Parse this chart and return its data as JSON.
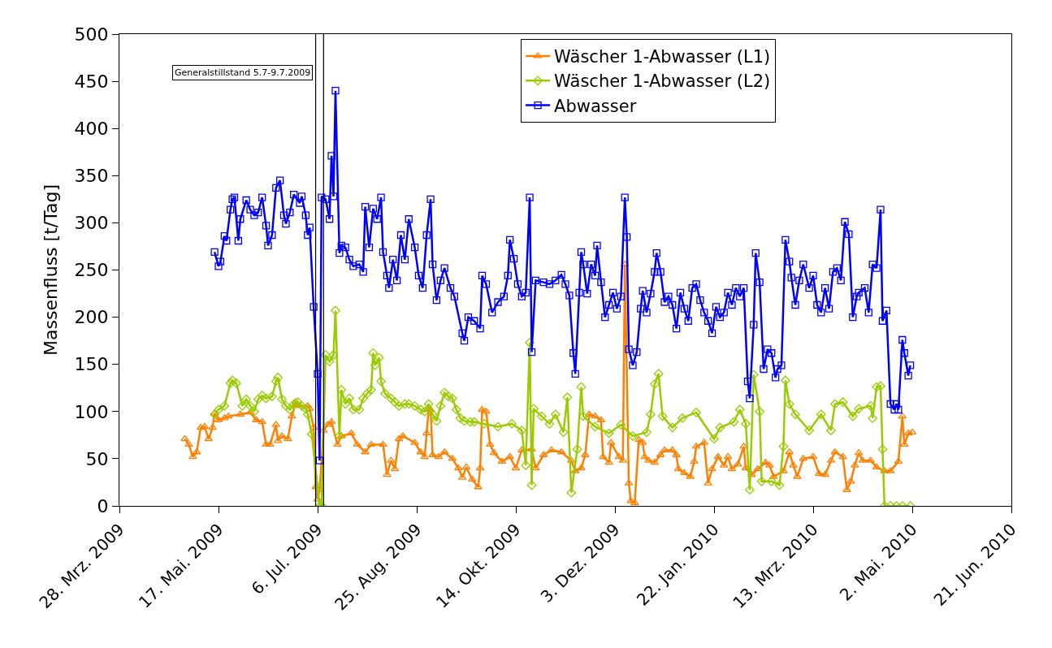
{
  "chart_data": {
    "type": "line",
    "ylabel": "Massenfluss [t/Tag]",
    "xlim": [
      "2009-03-28",
      "2010-06-21"
    ],
    "xticks": [
      {
        "value": "2009-03-28",
        "label": "28. Mrz. 2009"
      },
      {
        "value": "2009-05-17",
        "label": "17. Mai. 2009"
      },
      {
        "value": "2009-07-06",
        "label": "6. Jul. 2009"
      },
      {
        "value": "2009-08-25",
        "label": "25. Aug. 2009"
      },
      {
        "value": "2009-10-14",
        "label": "14. Okt. 2009"
      },
      {
        "value": "2009-12-03",
        "label": "3. Dez. 2009"
      },
      {
        "value": "2010-01-22",
        "label": "22. Jan. 2010"
      },
      {
        "value": "2010-03-13",
        "label": "13. Mrz. 2010"
      },
      {
        "value": "2010-05-02",
        "label": "2. Mai. 2010"
      },
      {
        "value": "2010-06-21",
        "label": "21. Jun. 2010"
      }
    ],
    "ylim": [
      0,
      500
    ],
    "yticks": [
      0,
      50,
      100,
      150,
      200,
      250,
      300,
      350,
      400,
      450,
      500
    ],
    "grid": false,
    "legend": "top",
    "line_style": "solid",
    "ref_lines": [
      {
        "axis": "x",
        "value": "2009-07-05",
        "label": "Generalstillstand 5.7-9.7.2009",
        "color": "#000000"
      },
      {
        "axis": "x",
        "value": "2009-07-09",
        "color": "#000000"
      }
    ],
    "series": [
      {
        "name": "Wäscher 1-Abwasser (L1)",
        "color": "#ff8000",
        "marker": "triangle",
        "x": [
          "2009-04-30",
          "2009-05-02",
          "2009-05-04",
          "2009-05-06",
          "2009-05-08",
          "2009-05-10",
          "2009-05-12",
          "2009-05-14",
          "2009-05-15",
          "2009-05-17",
          "2009-05-20",
          "2009-05-22",
          "2009-05-28",
          "2009-06-02",
          "2009-06-05",
          "2009-06-08",
          "2009-06-10",
          "2009-06-12",
          "2009-06-15",
          "2009-06-16",
          "2009-06-18",
          "2009-06-21",
          "2009-06-23",
          "2009-06-25",
          "2009-06-27",
          "2009-07-01",
          "2009-07-02",
          "2009-07-04",
          "2009-07-05",
          "2009-07-06",
          "2009-07-07",
          "2009-07-09",
          "2009-07-11",
          "2009-07-13",
          "2009-07-16",
          "2009-07-18",
          "2009-07-23",
          "2009-07-26",
          "2009-07-30",
          "2009-08-02",
          "2009-08-08",
          "2009-08-10",
          "2009-08-12",
          "2009-08-14",
          "2009-08-16",
          "2009-08-18",
          "2009-08-24",
          "2009-08-27",
          "2009-08-29",
          "2009-08-30",
          "2009-08-31",
          "2009-09-01",
          "2009-09-02",
          "2009-09-05",
          "2009-09-08",
          "2009-09-12",
          "2009-09-15",
          "2009-09-17",
          "2009-09-19",
          "2009-09-22",
          "2009-09-25",
          "2009-09-26",
          "2009-09-27",
          "2009-09-29",
          "2009-10-01",
          "2009-10-03",
          "2009-10-07",
          "2009-10-11",
          "2009-10-14",
          "2009-10-17",
          "2009-10-22",
          "2009-10-24",
          "2009-10-28",
          "2009-11-01",
          "2009-11-06",
          "2009-11-11",
          "2009-11-13",
          "2009-11-16",
          "2009-11-18",
          "2009-11-20",
          "2009-11-23",
          "2009-11-26",
          "2009-11-27",
          "2009-11-30",
          "2009-12-01",
          "2009-12-05",
          "2009-12-07",
          "2009-12-08",
          "2009-12-10",
          "2009-12-11",
          "2009-12-13",
          "2009-12-15",
          "2009-12-17",
          "2009-12-18",
          "2009-12-20",
          "2009-12-23",
          "2009-12-26",
          "2009-12-28",
          "2010-01-01",
          "2010-01-03",
          "2010-01-04",
          "2010-01-07",
          "2010-01-10",
          "2010-01-12",
          "2010-01-13",
          "2010-01-17",
          "2010-01-19",
          "2010-01-21",
          "2010-01-24",
          "2010-01-27",
          "2010-01-29",
          "2010-01-31",
          "2010-02-03",
          "2010-02-06",
          "2010-02-07",
          "2010-02-10",
          "2010-02-13",
          "2010-02-17",
          "2010-02-19",
          "2010-02-21",
          "2010-02-26",
          "2010-03-01",
          "2010-03-03",
          "2010-03-05",
          "2010-03-08",
          "2010-03-13",
          "2010-03-16",
          "2010-03-19",
          "2010-03-22",
          "2010-03-24",
          "2010-03-28",
          "2010-03-30",
          "2010-04-01",
          "2010-04-03",
          "2010-04-05",
          "2010-04-07",
          "2010-04-11",
          "2010-04-14",
          "2010-04-18",
          "2010-04-21",
          "2010-04-25",
          "2010-04-27",
          "2010-04-28",
          "2010-04-30",
          "2010-05-02"
        ],
        "values": [
          71,
          65,
          52,
          57,
          83,
          84,
          71,
          83,
          98,
          91,
          93,
          95,
          97,
          99,
          91,
          89,
          65,
          65,
          86,
          69,
          74,
          71,
          95,
          110,
          106,
          106,
          103,
          83,
          20,
          7,
          17,
          80,
          86,
          89,
          65,
          74,
          77,
          65,
          57,
          65,
          65,
          33,
          48,
          39,
          71,
          74,
          67,
          57,
          52,
          77,
          102,
          102,
          54,
          52,
          57,
          50,
          40,
          30,
          41,
          28,
          20,
          40,
          102,
          100,
          65,
          56,
          47,
          52,
          40,
          59,
          60,
          40,
          54,
          59,
          57,
          48,
          37,
          40,
          54,
          97,
          95,
          91,
          52,
          46,
          67,
          52,
          48,
          256,
          24,
          5,
          3,
          70,
          67,
          52,
          48,
          46,
          54,
          59,
          59,
          54,
          39,
          35,
          31,
          47,
          63,
          67,
          24,
          39,
          52,
          43,
          52,
          39,
          44,
          63,
          40,
          33,
          39,
          46,
          43,
          31,
          37,
          57,
          43,
          31,
          50,
          52,
          34,
          33,
          48,
          57,
          52,
          17,
          26,
          43,
          56,
          48,
          48,
          41,
          37,
          37,
          47,
          95,
          65,
          77,
          78
        ]
      },
      {
        "name": "Wäscher 1-Abwasser (L2)",
        "color": "#99cc00",
        "marker": "diamond",
        "x": [
          "2009-05-15",
          "2009-05-17",
          "2009-05-20",
          "2009-05-23",
          "2009-05-24",
          "2009-05-26",
          "2009-05-29",
          "2009-05-31",
          "2009-06-02",
          "2009-06-04",
          "2009-06-06",
          "2009-06-08",
          "2009-06-10",
          "2009-06-13",
          "2009-06-15",
          "2009-06-16",
          "2009-06-18",
          "2009-06-20",
          "2009-06-22",
          "2009-06-24",
          "2009-06-26",
          "2009-06-28",
          "2009-06-30",
          "2009-07-01",
          "2009-07-03",
          "2009-07-06",
          "2009-07-07",
          "2009-07-08",
          "2009-07-10",
          "2009-07-12",
          "2009-07-14",
          "2009-07-15",
          "2009-07-17",
          "2009-07-18",
          "2009-07-20",
          "2009-07-22",
          "2009-07-24",
          "2009-07-27",
          "2009-07-29",
          "2009-07-31",
          "2009-08-02",
          "2009-08-03",
          "2009-08-04",
          "2009-08-06",
          "2009-08-07",
          "2009-08-09",
          "2009-08-12",
          "2009-08-14",
          "2009-08-16",
          "2009-08-19",
          "2009-08-21",
          "2009-08-24",
          "2009-08-27",
          "2009-08-29",
          "2009-08-31",
          "2009-09-02",
          "2009-09-04",
          "2009-09-06",
          "2009-09-08",
          "2009-09-10",
          "2009-09-12",
          "2009-09-14",
          "2009-09-16",
          "2009-09-18",
          "2009-09-21",
          "2009-09-23",
          "2009-09-28",
          "2009-10-05",
          "2009-10-12",
          "2009-10-17",
          "2009-10-19",
          "2009-10-21",
          "2009-10-22",
          "2009-10-23",
          "2009-10-27",
          "2009-10-31",
          "2009-11-03",
          "2009-11-07",
          "2009-11-09",
          "2009-11-11",
          "2009-11-14",
          "2009-11-16",
          "2009-11-17",
          "2009-11-23",
          "2009-11-30",
          "2009-12-06",
          "2009-12-12",
          "2009-12-19",
          "2009-12-21",
          "2009-12-23",
          "2009-12-25",
          "2009-12-27",
          "2010-01-01",
          "2010-01-06",
          "2010-01-13",
          "2010-01-22",
          "2010-01-25",
          "2010-02-01",
          "2010-02-04",
          "2010-02-07",
          "2010-02-09",
          "2010-02-11",
          "2010-02-14",
          "2010-02-15",
          "2010-02-20",
          "2010-02-24",
          "2010-02-26",
          "2010-02-27",
          "2010-03-01",
          "2010-03-04",
          "2010-03-11",
          "2010-03-17",
          "2010-03-22",
          "2010-03-24",
          "2010-03-28",
          "2010-04-02",
          "2010-04-05",
          "2010-04-11",
          "2010-04-12",
          "2010-04-14",
          "2010-04-16",
          "2010-04-17",
          "2010-04-18",
          "2010-04-21",
          "2010-04-24",
          "2010-04-27",
          "2010-05-01"
        ],
        "values": [
          97,
          102,
          106,
          130,
          133,
          130,
          106,
          113,
          106,
          100,
          113,
          117,
          114,
          116,
          132,
          136,
          113,
          106,
          102,
          108,
          110,
          106,
          103,
          97,
          76,
          20,
          0,
          0,
          160,
          153,
          160,
          207,
          74,
          123,
          108,
          114,
          102,
          102,
          114,
          119,
          123,
          162,
          149,
          157,
          132,
          119,
          114,
          110,
          106,
          108,
          108,
          106,
          102,
          100,
          108,
          97,
          90,
          106,
          120,
          116,
          114,
          102,
          93,
          90,
          89,
          89,
          87,
          84,
          87,
          80,
          43,
          173,
          22,
          103,
          95,
          87,
          97,
          78,
          115,
          14,
          60,
          126,
          95,
          84,
          77,
          86,
          74,
          78,
          97,
          129,
          140,
          95,
          83,
          93,
          99,
          71,
          83,
          89,
          102,
          87,
          17,
          139,
          100,
          26,
          26,
          22,
          63,
          133,
          108,
          97,
          80,
          97,
          80,
          108,
          110,
          95,
          103,
          106,
          93,
          126,
          127,
          60,
          0,
          0,
          0,
          0,
          0
        ]
      },
      {
        "name": "Abwasser",
        "color": "#0000ff",
        "marker": "square",
        "x": [
          "2009-05-15",
          "2009-05-17",
          "2009-05-18",
          "2009-05-20",
          "2009-05-21",
          "2009-05-23",
          "2009-05-24",
          "2009-05-25",
          "2009-05-27",
          "2009-05-28",
          "2009-05-31",
          "2009-06-02",
          "2009-06-04",
          "2009-06-06",
          "2009-06-08",
          "2009-06-10",
          "2009-06-11",
          "2009-06-13",
          "2009-06-15",
          "2009-06-17",
          "2009-06-19",
          "2009-06-20",
          "2009-06-22",
          "2009-06-24",
          "2009-06-27",
          "2009-06-28",
          "2009-06-30",
          "2009-07-01",
          "2009-07-02",
          "2009-07-04",
          "2009-07-06",
          "2009-07-07",
          "2009-07-08",
          "2009-07-10",
          "2009-07-12",
          "2009-07-13",
          "2009-07-14",
          "2009-07-15",
          "2009-07-17",
          "2009-07-18",
          "2009-07-20",
          "2009-07-22",
          "2009-07-24",
          "2009-07-27",
          "2009-07-29",
          "2009-07-30",
          "2009-08-01",
          "2009-08-03",
          "2009-08-05",
          "2009-08-07",
          "2009-08-08",
          "2009-08-10",
          "2009-08-11",
          "2009-08-13",
          "2009-08-15",
          "2009-08-17",
          "2009-08-19",
          "2009-08-21",
          "2009-08-24",
          "2009-08-26",
          "2009-08-28",
          "2009-08-30",
          "2009-09-01",
          "2009-09-02",
          "2009-09-04",
          "2009-09-06",
          "2009-09-08",
          "2009-09-11",
          "2009-09-13",
          "2009-09-17",
          "2009-09-18",
          "2009-09-20",
          "2009-09-23",
          "2009-09-26",
          "2009-09-27",
          "2009-09-29",
          "2009-10-02",
          "2009-10-05",
          "2009-10-08",
          "2009-10-10",
          "2009-10-11",
          "2009-10-13",
          "2009-10-15",
          "2009-10-17",
          "2009-10-19",
          "2009-10-21",
          "2009-10-22",
          "2009-10-24",
          "2009-10-28",
          "2009-10-31",
          "2009-11-03",
          "2009-11-06",
          "2009-11-08",
          "2009-11-10",
          "2009-11-12",
          "2009-11-13",
          "2009-11-15",
          "2009-11-16",
          "2009-11-17",
          "2009-11-19",
          "2009-11-21",
          "2009-11-23",
          "2009-11-24",
          "2009-11-26",
          "2009-11-28",
          "2009-11-30",
          "2009-12-02",
          "2009-12-04",
          "2009-12-06",
          "2009-12-08",
          "2009-12-09",
          "2009-12-10",
          "2009-12-12",
          "2009-12-14",
          "2009-12-16",
          "2009-12-17",
          "2009-12-19",
          "2009-12-21",
          "2009-12-23",
          "2009-12-24",
          "2009-12-26",
          "2009-12-28",
          "2009-12-30",
          "2010-01-01",
          "2010-01-03",
          "2010-01-05",
          "2010-01-07",
          "2010-01-09",
          "2010-01-11",
          "2010-01-13",
          "2010-01-15",
          "2010-01-17",
          "2010-01-19",
          "2010-01-21",
          "2010-01-23",
          "2010-01-25",
          "2010-01-27",
          "2010-01-29",
          "2010-01-31",
          "2010-02-02",
          "2010-02-04",
          "2010-02-06",
          "2010-02-08",
          "2010-02-09",
          "2010-02-11",
          "2010-02-12",
          "2010-02-14",
          "2010-02-16",
          "2010-02-18",
          "2010-02-20",
          "2010-02-22",
          "2010-02-23",
          "2010-02-25",
          "2010-02-27",
          "2010-03-01",
          "2010-03-02",
          "2010-03-04",
          "2010-03-06",
          "2010-03-08",
          "2010-03-11",
          "2010-03-13",
          "2010-03-15",
          "2010-03-17",
          "2010-03-19",
          "2010-03-21",
          "2010-03-23",
          "2010-03-25",
          "2010-03-27",
          "2010-03-29",
          "2010-03-31",
          "2010-04-02",
          "2010-04-04",
          "2010-04-05",
          "2010-04-08",
          "2010-04-10",
          "2010-04-12",
          "2010-04-14",
          "2010-04-16",
          "2010-04-17",
          "2010-04-19",
          "2010-04-21",
          "2010-04-23",
          "2010-04-24",
          "2010-04-25",
          "2010-04-27",
          "2010-04-28",
          "2010-04-30",
          "2010-05-01"
        ],
        "values": [
          269,
          254,
          259,
          286,
          281,
          314,
          325,
          327,
          281,
          304,
          324,
          314,
          308,
          311,
          327,
          297,
          276,
          287,
          337,
          345,
          308,
          299,
          311,
          330,
          321,
          328,
          308,
          287,
          295,
          211,
          140,
          48,
          327,
          325,
          304,
          371,
          328,
          440,
          268,
          276,
          274,
          261,
          254,
          256,
          248,
          317,
          274,
          315,
          304,
          327,
          269,
          244,
          231,
          261,
          239,
          287,
          261,
          304,
          274,
          244,
          231,
          287,
          325,
          256,
          218,
          239,
          252,
          231,
          222,
          183,
          175,
          200,
          196,
          188,
          244,
          235,
          205,
          216,
          222,
          244,
          282,
          262,
          235,
          222,
          226,
          327,
          163,
          239,
          237,
          235,
          239,
          245,
          235,
          223,
          162,
          140,
          226,
          269,
          256,
          225,
          256,
          244,
          276,
          237,
          200,
          213,
          226,
          209,
          222,
          327,
          285,
          166,
          149,
          163,
          209,
          228,
          205,
          225,
          248,
          268,
          248,
          216,
          222,
          213,
          188,
          226,
          209,
          196,
          231,
          235,
          218,
          205,
          196,
          183,
          211,
          200,
          205,
          226,
          213,
          231,
          222,
          231,
          132,
          114,
          192,
          268,
          237,
          145,
          166,
          162,
          136,
          145,
          149,
          282,
          259,
          242,
          213,
          239,
          256,
          231,
          244,
          213,
          205,
          231,
          209,
          248,
          252,
          239,
          301,
          288,
          200,
          222,
          226,
          231,
          205,
          256,
          252,
          314,
          196,
          207,
          108,
          102,
          108,
          102,
          176,
          162,
          138,
          149
        ]
      }
    ]
  }
}
